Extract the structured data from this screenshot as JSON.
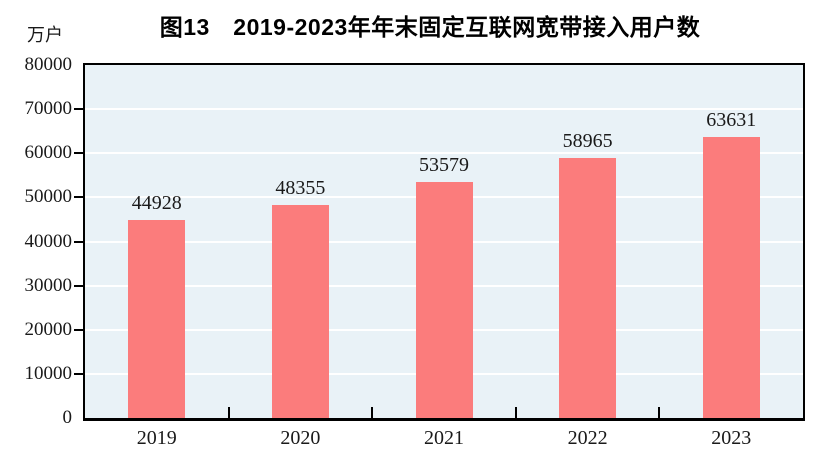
{
  "page": {
    "title": "图13　2019-2023年年末固定互联网宽带接入用户数",
    "unit_label": "万户"
  },
  "chart_data": {
    "type": "bar",
    "title": "图13　2019-2023年年末固定互联网宽带接入用户数",
    "ylabel_unit": "万户",
    "categories": [
      "2019",
      "2020",
      "2021",
      "2022",
      "2023"
    ],
    "values": [
      44928,
      48355,
      53579,
      58965,
      63631
    ],
    "data_labels": [
      "44928",
      "48355",
      "53579",
      "58965",
      "63631"
    ],
    "ylim": [
      0,
      80000
    ],
    "yticks": [
      0,
      10000,
      20000,
      30000,
      40000,
      50000,
      60000,
      70000,
      80000
    ],
    "grid": true,
    "legend_position": "none",
    "colors": {
      "bar": "#FB7C7C",
      "plot_bg": "#E9F2F7",
      "gridline": "#FFFFFF",
      "axis": "#000000",
      "text": "#1A1A1A"
    }
  }
}
